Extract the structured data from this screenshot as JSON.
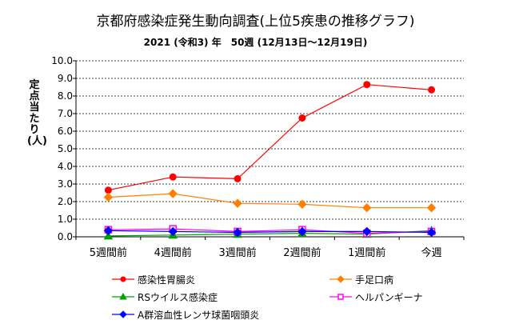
{
  "chart_data": {
    "type": "line",
    "title": "京都府感染症発生動向調査(上位5疾患の推移グラフ)",
    "subtitle": "2021 (令和3) 年　50週 (12月13日〜12月19日)",
    "ylabel": "定点当たり　(人)",
    "categories": [
      "5週間前",
      "4週間前",
      "3週間前",
      "2週間前",
      "1週間前",
      "今週"
    ],
    "ylim": [
      0,
      10
    ],
    "yticks": [
      "0.0",
      "1.0",
      "2.0",
      "3.0",
      "4.0",
      "5.0",
      "6.0",
      "7.0",
      "8.0",
      "9.0",
      "10.0"
    ],
    "grid": true,
    "legend_position": "bottom",
    "series": [
      {
        "name": "感染性胃腸炎",
        "values": [
          2.65,
          3.4,
          3.3,
          6.75,
          8.65,
          8.35
        ],
        "color": "#ff0000",
        "marker": "circle"
      },
      {
        "name": "手足口病",
        "values": [
          2.25,
          2.45,
          1.9,
          1.85,
          1.65,
          1.65
        ],
        "color": "#ff8000",
        "marker": "diamond"
      },
      {
        "name": "RSウイルス感染症",
        "values": [
          0.05,
          0.1,
          0.15,
          0.2,
          0.15,
          0.35
        ],
        "color": "#00a000",
        "marker": "triangle"
      },
      {
        "name": "ヘルパンギーナ",
        "values": [
          0.4,
          0.45,
          0.3,
          0.4,
          0.2,
          0.3
        ],
        "color": "#ff00ff",
        "marker": "square"
      },
      {
        "name": "A群溶血性レンサ球菌咽頭炎",
        "values": [
          0.35,
          0.3,
          0.25,
          0.3,
          0.3,
          0.25
        ],
        "color": "#0000ff",
        "marker": "diamond"
      }
    ]
  }
}
